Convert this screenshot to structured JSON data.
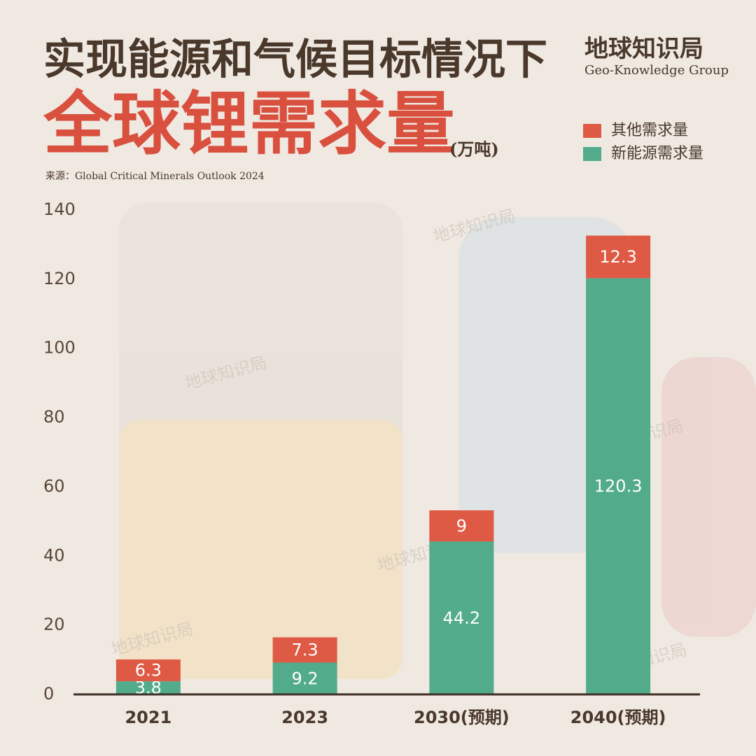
{
  "chart_data": {
    "type": "stacked_bar",
    "title": "实现能源和气候目标情况下",
    "subtitle": "全球锂需求量",
    "unit": "(万吨)",
    "source": "来源：Global Critical Minerals Outlook 2024",
    "brand": "地球知识局",
    "brand_en": "Geo-Knowledge Group",
    "watermark": "地球知识局",
    "categories": [
      "2021",
      "2023",
      "2030(预期)",
      "2040(预期)"
    ],
    "series": [
      {
        "name": "新能源需求量",
        "color": "#52ab8a",
        "values": [
          3.8,
          9.2,
          44.2,
          120.3
        ]
      },
      {
        "name": "其他需求量",
        "color": "#df5a44",
        "values": [
          6.3,
          7.3,
          9,
          12.3
        ]
      }
    ],
    "ylim": [
      0,
      140
    ],
    "yticks": [
      0,
      20,
      40,
      60,
      80,
      100,
      120,
      140
    ],
    "grid": false
  }
}
